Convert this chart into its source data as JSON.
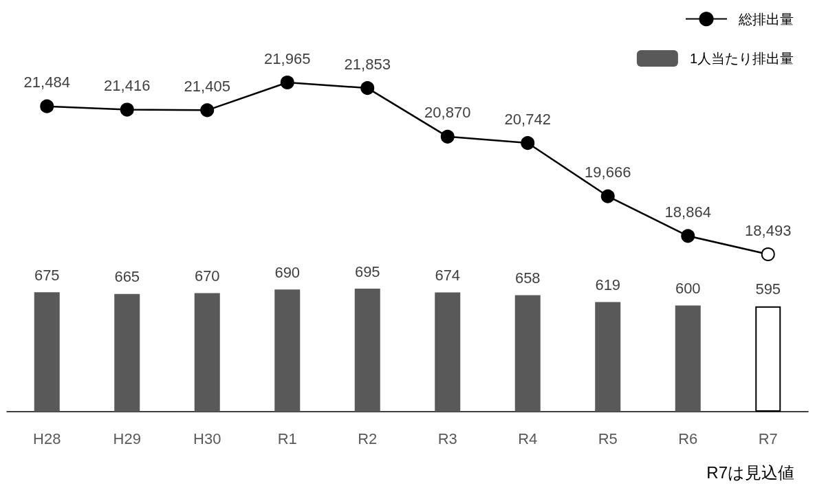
{
  "chart_data": [
    {
      "type": "line",
      "categories": [
        null,
        null,
        null,
        null,
        null,
        null,
        null,
        null,
        null,
        null
      ],
      "series": [
        {
          "name": "総排出量",
          "color": "#000000",
          "colors": [
            "#000000",
            "#000000",
            "#000000",
            "#000000",
            "#000000",
            "#000000",
            "#000000",
            "#000000",
            "#000000",
            "#ffffff"
          ],
          "values": [
            21484,
            21416,
            21405,
            21965,
            21853,
            20870,
            20742,
            19666,
            18864,
            18493
          ],
          "value_labels": [
            "21,484",
            "21,416",
            "21,405",
            "21,965",
            "21,853",
            "20,870",
            "20,742",
            "19,666",
            "18,864",
            "18,493"
          ]
        }
      ],
      "marker": "circle",
      "line_style": "solid",
      "grid": false,
      "legend": "top right",
      "tick_labels": false
    },
    {
      "type": "bar",
      "categories": [
        "H28",
        "H29",
        "H30",
        "R1",
        "R2",
        "R3",
        "R4",
        "R5",
        "R6",
        "R7"
      ],
      "series": [
        {
          "name": "1人当たり排出量",
          "color": "#595959",
          "colors": [
            "#595959",
            "#595959",
            "#595959",
            "#595959",
            "#595959",
            "#595959",
            "#595959",
            "#595959",
            "#595959",
            "#ffffff"
          ],
          "values": [
            675,
            665,
            670,
            690,
            695,
            674,
            658,
            619,
            600,
            595
          ]
        }
      ],
      "data_labels": true,
      "grid": false,
      "legend": "top right",
      "tick_labels": "x",
      "annotations": [
        "R7は見込値"
      ]
    }
  ]
}
